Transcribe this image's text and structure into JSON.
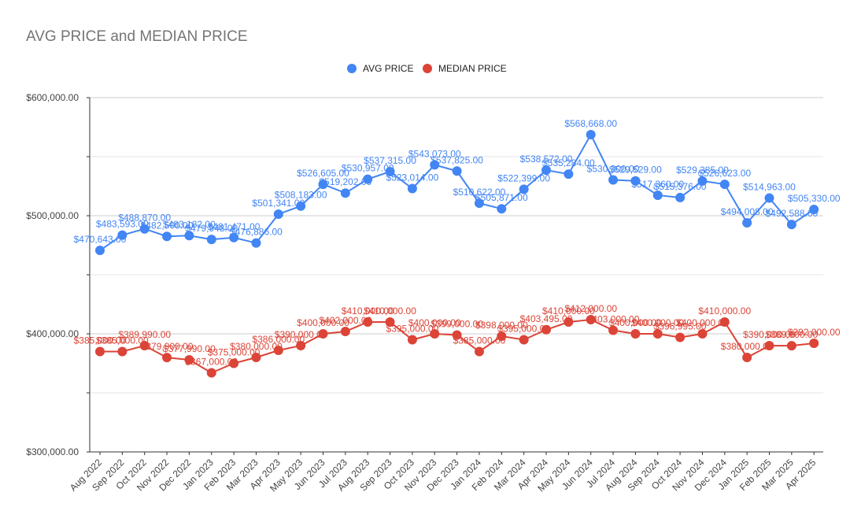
{
  "chart_data": {
    "type": "line",
    "title": "AVG PRICE and MEDIAN PRICE",
    "legend_position": "top-center",
    "grid": true,
    "ylim": [
      300000,
      600000
    ],
    "yticks": [
      {
        "value": 300000,
        "label": "$300,000.00"
      },
      {
        "value": 400000,
        "label": "$400,000.00"
      },
      {
        "value": 500000,
        "label": "$500,000.00"
      },
      {
        "value": 600000,
        "label": "$600,000.00"
      }
    ],
    "categories": [
      "Aug 2022",
      "Sep 2022",
      "Oct 2022",
      "Nov 2022",
      "Dec 2022",
      "Jan 2023",
      "Feb 2023",
      "Mar 2023",
      "Apr 2023",
      "May 2023",
      "Jun 2023",
      "Jul 2023",
      "Aug 2023",
      "Sep 2023",
      "Oct 2023",
      "Nov 2023",
      "Dec 2023",
      "Jan 2024",
      "Feb 2024",
      "Mar 2024",
      "Apr 2024",
      "May 2024",
      "Jun 2024",
      "Jul 2024",
      "Aug 2024",
      "Sep 2024",
      "Oct 2024",
      "Nov 2024",
      "Dec 2024",
      "Jan 2025",
      "Feb 2025",
      "Mar 2025",
      "Apr 2025"
    ],
    "series": [
      {
        "name": "AVG PRICE",
        "color": "#4285f4",
        "values": [
          470643,
          483593,
          488870,
          482500,
          483182,
          479948,
          481471,
          476886,
          501341,
          508183,
          526605,
          519202,
          530957,
          537315,
          523014,
          543073,
          537825,
          510622,
          505871,
          522399,
          538572,
          535284,
          568668,
          530300,
          529529,
          517360,
          515376,
          529385,
          526623,
          494008,
          514963,
          492588,
          505330
        ],
        "labels": [
          "$470,643.00",
          "$483,593.00",
          "$488,870.00",
          "$482,500.00",
          "$483,182.00",
          "$479,948.00",
          "$481,471.00",
          "$476,886.00",
          "$501,341.00",
          "$508,183.00",
          "$526,605.00",
          "$519,202.00",
          "$530,957.00",
          "$537,315.00",
          "$523,014.00",
          "$543,073.00",
          "$537,825.00",
          "$510,622.00",
          "$505,871.00",
          "$522,399.00",
          "$538,572.00",
          "$535,284.00",
          "$568,668.00",
          "$530,300.00",
          "$529,529.00",
          "$517,360.00",
          "$515,376.00",
          "$529,385.00",
          "$526,623.00",
          "$494,008.00",
          "$514,963.00",
          "$492,588.00",
          "$505,330.00"
        ]
      },
      {
        "name": "MEDIAN PRICE",
        "color": "#db4437",
        "values": [
          385000,
          385000,
          389990,
          379900,
          377990,
          367000,
          375000,
          380000,
          386000,
          390000,
          400000,
          402000,
          410000,
          410000,
          395000,
          400000,
          399000,
          385000,
          398000,
          395000,
          403495,
          410000,
          412000,
          403000,
          400000,
          400000,
          396995,
          400000,
          410000,
          380000,
          390000,
          389900,
          392000
        ],
        "labels": [
          "$385,000.00",
          "$385,000.00",
          "$389,990.00",
          "$379,900.00",
          "$377,990.00",
          "$367,000.00",
          "$375,000.00",
          "$380,000.00",
          "$386,000.00",
          "$390,000.00",
          "$400,000.00",
          "$402,000.00",
          "$410,000.00",
          "$410,000.00",
          "$395,000.00",
          "$400,000.00",
          "$399,000.00",
          "$385,000.00",
          "$398,000.00",
          "$395,000.00",
          "$403,495.00",
          "$410,000.00",
          "$412,000.00",
          "$403,000.00",
          "$400,000.00",
          "$400,000.00",
          "$396,995.00",
          "$400,000.00",
          "$410,000.00",
          "$380,000.00",
          "$390,000.00",
          "$389,900.00",
          "$392,000.00"
        ]
      }
    ]
  }
}
